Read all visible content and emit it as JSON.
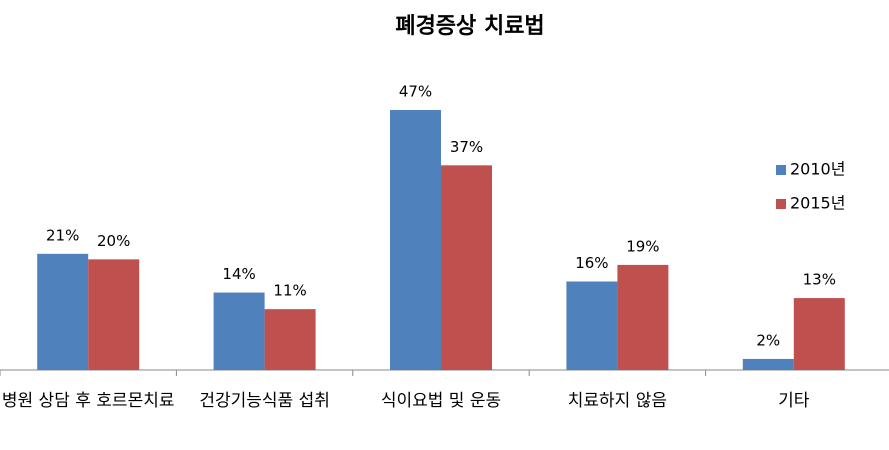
{
  "chart_data": {
    "type": "bar",
    "title": "폐경증상 치료법",
    "categories": [
      "병원 상담 후 호르몬치료",
      "건강기능식품 섭취",
      "식이요법 및 운동",
      "치료하지 않음",
      "기타"
    ],
    "series": [
      {
        "name": "2010년",
        "color": "#4f81bd",
        "values": [
          21,
          14,
          47,
          16,
          2
        ],
        "value_labels": [
          "21%",
          "14%",
          "47%",
          "16%",
          "2%"
        ]
      },
      {
        "name": "2015년",
        "color": "#c0504d",
        "values": [
          20,
          11,
          37,
          19,
          13
        ],
        "value_labels": [
          "20%",
          "11%",
          "37%",
          "19%",
          "13%"
        ]
      }
    ],
    "legend": "right"
  }
}
